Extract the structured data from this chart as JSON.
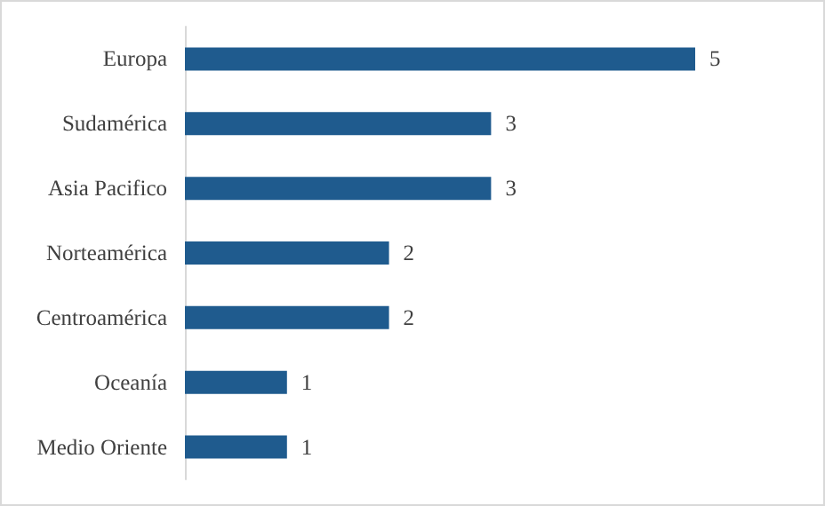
{
  "chart_data": {
    "type": "bar",
    "orientation": "horizontal",
    "categories": [
      "Europa",
      "Sudamérica",
      "Asia Pacifico",
      "Norteamérica",
      "Centroamérica",
      "Oceanía",
      "Medio Oriente"
    ],
    "values": [
      5,
      3,
      3,
      2,
      2,
      1,
      1
    ],
    "color": "#1f5b8e",
    "data_labels": true
  }
}
